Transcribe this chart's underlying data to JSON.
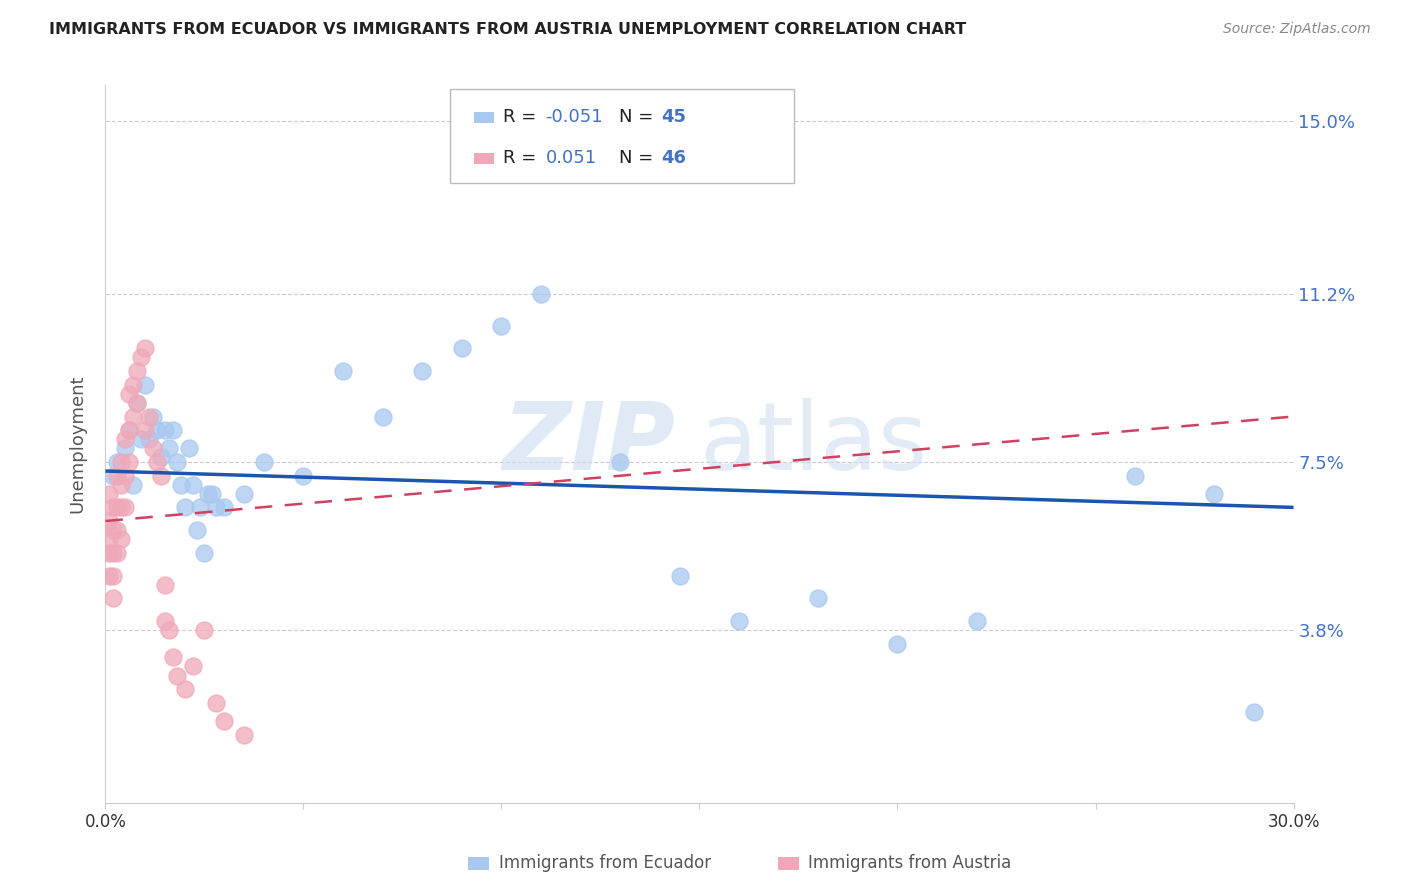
{
  "title": "IMMIGRANTS FROM ECUADOR VS IMMIGRANTS FROM AUSTRIA UNEMPLOYMENT CORRELATION CHART",
  "source": "Source: ZipAtlas.com",
  "ylabel": "Unemployment",
  "ytick_vals": [
    0.0,
    0.038,
    0.075,
    0.112,
    0.15
  ],
  "ytick_labels": [
    "",
    "3.8%",
    "7.5%",
    "11.2%",
    "15.0%"
  ],
  "xmin": 0.0,
  "xmax": 0.3,
  "ymin": 0.0,
  "ymax": 0.158,
  "ecuador_color": "#a8c8f0",
  "austria_color": "#f0a8b8",
  "ecuador_line_color": "#1a56b0",
  "austria_line_color": "#d04060",
  "ecuador_r": "-0.051",
  "ecuador_n": "45",
  "austria_r": "0.051",
  "austria_n": "46",
  "watermark_zip": "ZIP",
  "watermark_atlas": "atlas",
  "ecuador_x": [
    0.002,
    0.003,
    0.005,
    0.006,
    0.007,
    0.008,
    0.009,
    0.01,
    0.011,
    0.012,
    0.013,
    0.014,
    0.015,
    0.016,
    0.017,
    0.018,
    0.019,
    0.02,
    0.021,
    0.022,
    0.023,
    0.024,
    0.025,
    0.026,
    0.027,
    0.028,
    0.03,
    0.035,
    0.04,
    0.05,
    0.06,
    0.07,
    0.08,
    0.09,
    0.1,
    0.11,
    0.13,
    0.145,
    0.16,
    0.18,
    0.2,
    0.22,
    0.26,
    0.28,
    0.29
  ],
  "ecuador_y": [
    0.072,
    0.075,
    0.078,
    0.082,
    0.07,
    0.088,
    0.08,
    0.092,
    0.08,
    0.085,
    0.082,
    0.076,
    0.082,
    0.078,
    0.082,
    0.075,
    0.07,
    0.065,
    0.078,
    0.07,
    0.06,
    0.065,
    0.055,
    0.068,
    0.068,
    0.065,
    0.065,
    0.068,
    0.075,
    0.072,
    0.095,
    0.085,
    0.095,
    0.1,
    0.105,
    0.112,
    0.075,
    0.05,
    0.04,
    0.045,
    0.035,
    0.04,
    0.072,
    0.068,
    0.02
  ],
  "austria_x": [
    0.001,
    0.001,
    0.001,
    0.001,
    0.001,
    0.002,
    0.002,
    0.002,
    0.002,
    0.002,
    0.003,
    0.003,
    0.003,
    0.003,
    0.004,
    0.004,
    0.004,
    0.004,
    0.005,
    0.005,
    0.005,
    0.006,
    0.006,
    0.006,
    0.007,
    0.007,
    0.008,
    0.008,
    0.009,
    0.01,
    0.01,
    0.011,
    0.012,
    0.013,
    0.014,
    0.015,
    0.015,
    0.016,
    0.017,
    0.018,
    0.02,
    0.022,
    0.025,
    0.028,
    0.03,
    0.035
  ],
  "austria_y": [
    0.068,
    0.062,
    0.058,
    0.055,
    0.05,
    0.065,
    0.06,
    0.055,
    0.05,
    0.045,
    0.072,
    0.065,
    0.06,
    0.055,
    0.075,
    0.07,
    0.065,
    0.058,
    0.08,
    0.072,
    0.065,
    0.09,
    0.082,
    0.075,
    0.092,
    0.085,
    0.095,
    0.088,
    0.098,
    0.1,
    0.082,
    0.085,
    0.078,
    0.075,
    0.072,
    0.048,
    0.04,
    0.038,
    0.032,
    0.028,
    0.025,
    0.03,
    0.038,
    0.022,
    0.018,
    0.015
  ]
}
